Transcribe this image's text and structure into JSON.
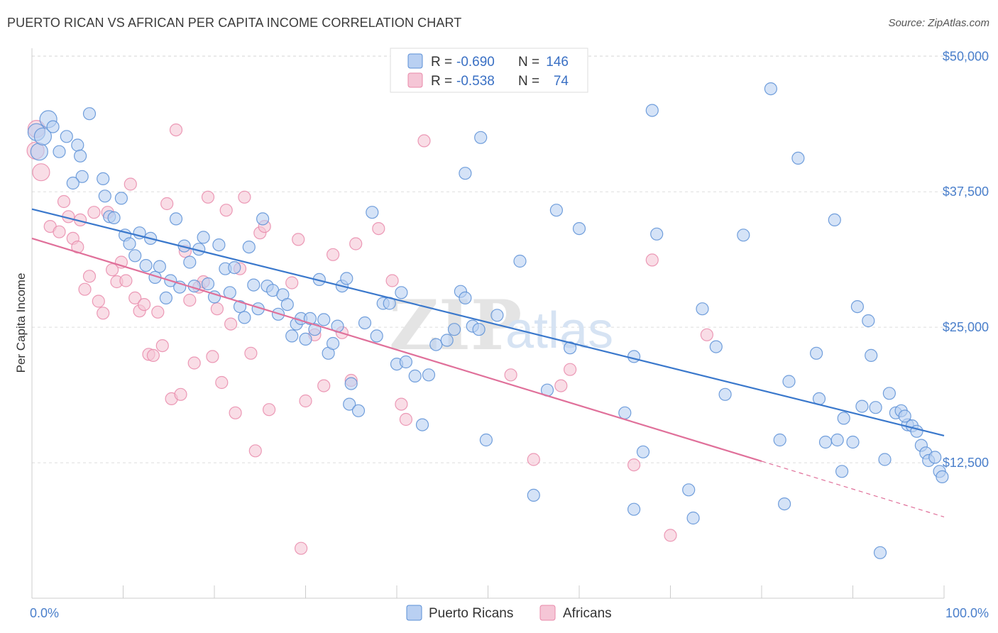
{
  "title": "PUERTO RICAN VS AFRICAN PER CAPITA INCOME CORRELATION CHART",
  "source": "Source: ZipAtlas.com",
  "watermark": {
    "part1": "ZIP",
    "part2": "atlas"
  },
  "colors": {
    "blue": "#5b8fd6",
    "blue_fill": "#b9d0f2",
    "blue_line": "#3a78cc",
    "pink": "#e989aa",
    "pink_fill": "#f5c6d6",
    "pink_line": "#e0709a",
    "axis_text": "#4a7fcb",
    "grid": "#dddddd"
  },
  "legend": {
    "rows": [
      {
        "r_label": "R =",
        "r_value": "-0.690",
        "n_label": "N =",
        "n_value": "146"
      },
      {
        "r_label": "R =",
        "r_value": "-0.538",
        "n_label": "N =",
        "n_value": "74"
      }
    ]
  },
  "bottom_legend": [
    "Puerto Ricans",
    "Africans"
  ],
  "chart_data": {
    "type": "scatter",
    "ylabel": "Per Capita Income",
    "xlabel": "",
    "x_tick_labels": [
      "0.0%",
      "100.0%"
    ],
    "y_tick_labels": [
      "$12,500",
      "$25,000",
      "$37,500",
      "$50,000"
    ],
    "y_ticks": [
      12500,
      25000,
      37500,
      50000
    ],
    "xlim": [
      0,
      100
    ],
    "ylim": [
      0,
      51000
    ],
    "grid": true,
    "legend_position": "top-center",
    "series": [
      {
        "name": "Puerto Ricans",
        "color": "#5b8fd6",
        "trend": {
          "x0": 0,
          "y0": 35900,
          "x1": 100,
          "y1": 15000
        },
        "points": [
          [
            0.5,
            43000
          ],
          [
            0.8,
            41200
          ],
          [
            1.2,
            42600
          ],
          [
            1.8,
            44200
          ],
          [
            2.3,
            43500
          ],
          [
            3.0,
            41200
          ],
          [
            3.8,
            42600
          ],
          [
            5.0,
            41800
          ],
          [
            6.3,
            44700
          ],
          [
            5.3,
            40800
          ],
          [
            5.5,
            38900
          ],
          [
            4.5,
            38300
          ],
          [
            7.8,
            38700
          ],
          [
            8.0,
            37100
          ],
          [
            8.5,
            35200
          ],
          [
            9.0,
            35100
          ],
          [
            9.8,
            36900
          ],
          [
            10.2,
            33500
          ],
          [
            10.7,
            32700
          ],
          [
            11.3,
            31600
          ],
          [
            11.8,
            33700
          ],
          [
            12.5,
            30700
          ],
          [
            13.0,
            33200
          ],
          [
            13.5,
            29600
          ],
          [
            14.0,
            30600
          ],
          [
            14.7,
            27700
          ],
          [
            15.2,
            29300
          ],
          [
            15.8,
            35000
          ],
          [
            16.2,
            28700
          ],
          [
            16.7,
            32500
          ],
          [
            17.3,
            31000
          ],
          [
            17.8,
            28800
          ],
          [
            18.3,
            32200
          ],
          [
            18.8,
            33300
          ],
          [
            19.3,
            29000
          ],
          [
            20.0,
            27800
          ],
          [
            20.5,
            32600
          ],
          [
            21.2,
            30400
          ],
          [
            21.7,
            28200
          ],
          [
            22.2,
            30500
          ],
          [
            22.8,
            26900
          ],
          [
            23.3,
            25900
          ],
          [
            23.8,
            32400
          ],
          [
            24.3,
            28900
          ],
          [
            24.8,
            26700
          ],
          [
            25.3,
            35000
          ],
          [
            25.8,
            28800
          ],
          [
            26.4,
            28400
          ],
          [
            27.0,
            26200
          ],
          [
            27.5,
            28000
          ],
          [
            28.0,
            27100
          ],
          [
            28.5,
            24200
          ],
          [
            29.0,
            25300
          ],
          [
            29.5,
            25800
          ],
          [
            30.0,
            23900
          ],
          [
            30.5,
            25800
          ],
          [
            31.0,
            24800
          ],
          [
            31.5,
            29400
          ],
          [
            32.0,
            25700
          ],
          [
            32.5,
            22600
          ],
          [
            33.0,
            23500
          ],
          [
            33.5,
            25100
          ],
          [
            34.0,
            28800
          ],
          [
            34.5,
            29500
          ],
          [
            35.0,
            19800
          ],
          [
            34.8,
            17900
          ],
          [
            35.8,
            17300
          ],
          [
            36.5,
            25400
          ],
          [
            37.3,
            35600
          ],
          [
            37.8,
            24200
          ],
          [
            38.5,
            27200
          ],
          [
            39.2,
            27200
          ],
          [
            40.0,
            21600
          ],
          [
            40.5,
            28200
          ],
          [
            41.0,
            21800
          ],
          [
            42.0,
            20500
          ],
          [
            42.8,
            16000
          ],
          [
            43.5,
            20600
          ],
          [
            44.3,
            23400
          ],
          [
            45.5,
            23800
          ],
          [
            46.3,
            24800
          ],
          [
            47.0,
            28300
          ],
          [
            47.5,
            27700
          ],
          [
            48.3,
            25100
          ],
          [
            49.0,
            24800
          ],
          [
            49.8,
            14600
          ],
          [
            47.5,
            39200
          ],
          [
            49.2,
            42500
          ],
          [
            51.0,
            26100
          ],
          [
            53.5,
            31100
          ],
          [
            55.0,
            9500
          ],
          [
            56.5,
            19200
          ],
          [
            57.5,
            35800
          ],
          [
            59.0,
            23100
          ],
          [
            60.0,
            34100
          ],
          [
            65.0,
            17100
          ],
          [
            66.0,
            22300
          ],
          [
            66.0,
            8200
          ],
          [
            67.0,
            13500
          ],
          [
            68.0,
            45000
          ],
          [
            68.5,
            33600
          ],
          [
            72.0,
            10000
          ],
          [
            72.5,
            7400
          ],
          [
            73.5,
            26700
          ],
          [
            75.0,
            23200
          ],
          [
            76.0,
            18800
          ],
          [
            78.0,
            33500
          ],
          [
            81.0,
            47000
          ],
          [
            82.0,
            14600
          ],
          [
            82.5,
            8700
          ],
          [
            83.0,
            20000
          ],
          [
            84.0,
            40600
          ],
          [
            86.0,
            22600
          ],
          [
            86.3,
            18400
          ],
          [
            87.0,
            14400
          ],
          [
            88.0,
            34900
          ],
          [
            88.3,
            14600
          ],
          [
            88.8,
            11700
          ],
          [
            89.0,
            16600
          ],
          [
            90.0,
            14400
          ],
          [
            90.5,
            26900
          ],
          [
            91.0,
            17700
          ],
          [
            91.7,
            25600
          ],
          [
            92.0,
            22400
          ],
          [
            92.5,
            17600
          ],
          [
            93.5,
            12800
          ],
          [
            94.0,
            18900
          ],
          [
            94.7,
            17100
          ],
          [
            95.3,
            17300
          ],
          [
            96.0,
            16000
          ],
          [
            95.7,
            16800
          ],
          [
            96.5,
            15900
          ],
          [
            97.0,
            15400
          ],
          [
            97.5,
            14100
          ],
          [
            98.0,
            13400
          ],
          [
            98.3,
            12700
          ],
          [
            99.0,
            13000
          ],
          [
            99.5,
            11700
          ],
          [
            99.8,
            11200
          ],
          [
            93.0,
            4200
          ]
        ]
      },
      {
        "name": "Africans",
        "color": "#e989aa",
        "trend": {
          "x0": 0,
          "y0": 33200,
          "x1": 100,
          "y1": 7500,
          "solid_until_x": 80
        },
        "points": [
          [
            0.4,
            41300
          ],
          [
            0.5,
            43300
          ],
          [
            1.0,
            39300
          ],
          [
            2.0,
            34300
          ],
          [
            3.0,
            33800
          ],
          [
            3.5,
            36600
          ],
          [
            4.0,
            35200
          ],
          [
            4.5,
            33200
          ],
          [
            5.0,
            32400
          ],
          [
            5.3,
            34900
          ],
          [
            5.8,
            28500
          ],
          [
            6.3,
            29700
          ],
          [
            6.8,
            35600
          ],
          [
            7.3,
            27400
          ],
          [
            7.8,
            26300
          ],
          [
            8.3,
            35600
          ],
          [
            8.8,
            30300
          ],
          [
            9.3,
            29200
          ],
          [
            9.8,
            31000
          ],
          [
            10.3,
            29300
          ],
          [
            10.8,
            38200
          ],
          [
            11.3,
            27700
          ],
          [
            11.8,
            26500
          ],
          [
            12.3,
            27100
          ],
          [
            12.8,
            22500
          ],
          [
            13.3,
            22400
          ],
          [
            13.8,
            26400
          ],
          [
            14.3,
            23300
          ],
          [
            14.8,
            36400
          ],
          [
            15.3,
            18400
          ],
          [
            15.8,
            43200
          ],
          [
            16.3,
            18800
          ],
          [
            16.8,
            32000
          ],
          [
            17.3,
            27500
          ],
          [
            17.8,
            21700
          ],
          [
            18.3,
            28700
          ],
          [
            18.8,
            29200
          ],
          [
            19.3,
            37000
          ],
          [
            19.8,
            22300
          ],
          [
            20.3,
            26700
          ],
          [
            20.8,
            19900
          ],
          [
            21.3,
            35800
          ],
          [
            21.8,
            25300
          ],
          [
            22.3,
            17100
          ],
          [
            22.8,
            30400
          ],
          [
            23.3,
            37000
          ],
          [
            24.0,
            22600
          ],
          [
            24.5,
            13600
          ],
          [
            25.0,
            33700
          ],
          [
            25.5,
            34300
          ],
          [
            26.0,
            17400
          ],
          [
            28.5,
            29100
          ],
          [
            29.2,
            33100
          ],
          [
            29.5,
            4600
          ],
          [
            30.0,
            18200
          ],
          [
            31.0,
            24300
          ],
          [
            32.0,
            19600
          ],
          [
            33.0,
            31700
          ],
          [
            34.0,
            24500
          ],
          [
            35.0,
            20100
          ],
          [
            35.5,
            32700
          ],
          [
            38.0,
            34100
          ],
          [
            39.5,
            29300
          ],
          [
            40.5,
            17900
          ],
          [
            41.0,
            16500
          ],
          [
            43.0,
            42200
          ],
          [
            52.5,
            20600
          ],
          [
            55.0,
            12800
          ],
          [
            58.0,
            19600
          ],
          [
            59.0,
            21100
          ],
          [
            66.0,
            12300
          ],
          [
            68.0,
            31200
          ],
          [
            70.0,
            5800
          ],
          [
            74.0,
            24300
          ]
        ]
      }
    ]
  }
}
